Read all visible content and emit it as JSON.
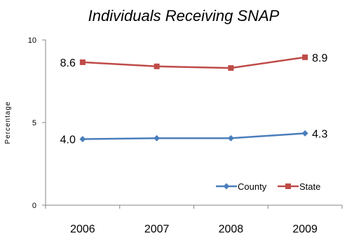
{
  "chart_data": {
    "type": "line",
    "title": "Individuals Receiving SNAP",
    "ylabel": "Percentage",
    "xlabel": "",
    "categories": [
      "2006",
      "2007",
      "2008",
      "2009"
    ],
    "ylim": [
      0,
      10
    ],
    "yticks": [
      "0",
      "5",
      "10"
    ],
    "grid": false,
    "legend_position": "bottom-right",
    "series": [
      {
        "name": "County",
        "values": [
          4.0,
          4.05,
          4.05,
          4.35
        ],
        "color": "#4a7ebb",
        "marker": "diamond",
        "labels": {
          "first": "4.0",
          "last": "4.3"
        }
      },
      {
        "name": "State",
        "values": [
          8.65,
          8.4,
          8.3,
          8.95
        ],
        "color": "#be4b48",
        "marker": "square",
        "labels": {
          "first": "8.6",
          "last": "8.9"
        }
      }
    ]
  }
}
